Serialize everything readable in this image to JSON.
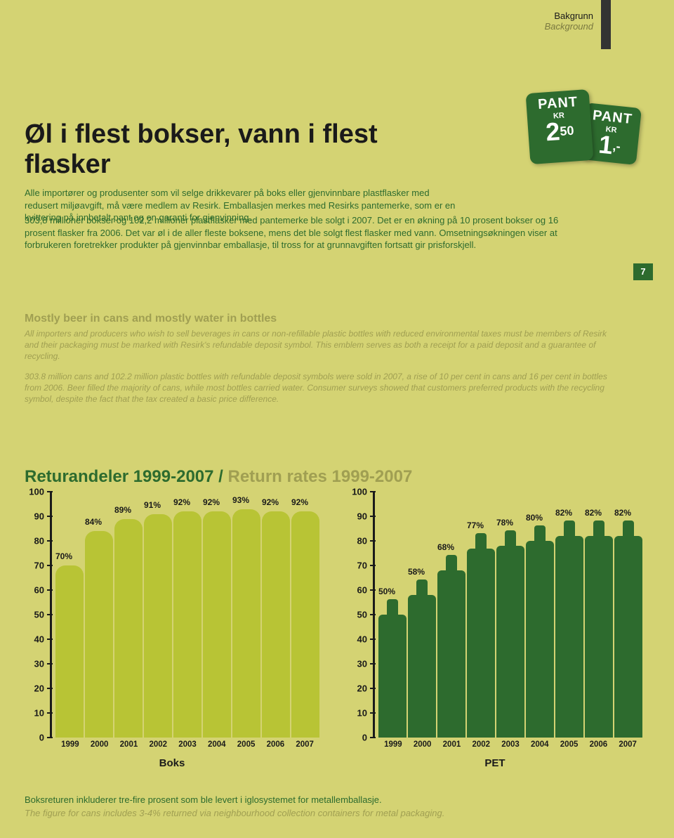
{
  "header": {
    "no": "Bakgrunn",
    "en": "Background"
  },
  "badges": {
    "big": {
      "pant": "PANT",
      "kr": "KR",
      "whole": "2",
      "dec": "50"
    },
    "small": {
      "pant": "PANT",
      "kr": "KR",
      "whole": "1",
      "dec": ",-"
    }
  },
  "title": "Øl i flest bokser, vann i flest flasker",
  "lead_no": "Alle importører og produsenter som vil selge drikkevarer på boks eller gjenvinnbare plastflasker med redusert miljøavgift, må være medlem av Resirk. Emballasjen merkes med Resirks pantemerke, som er en kvittering på innbetalt pant og en garanti for gjenvinning.",
  "body_no": "303,8 millioner bokser og 102,2 millioner plastflasker med pantemerke ble solgt i 2007. Det er en økning på 10 prosent bokser og 16 prosent flasker fra 2006. Det var øl i de aller fleste boksene, mens det ble solgt flest flasker med vann. Omsetningsøkningen viser at forbrukeren foretrekker produkter på gjenvinnbar emballasje, til tross for at grunnavgiften fortsatt gir prisforskjell.",
  "page": "7",
  "en_title": "Mostly beer in cans and mostly water in bottles",
  "en_p1": "All importers and producers who wish to sell beverages in cans or non-refillable plastic bottles with reduced environmental taxes must be members of Resirk and their packaging must be marked with Resirk's refundable deposit symbol. This emblem serves as both a receipt for a paid deposit and a guarantee of recycling.",
  "en_p2": "303.8 million cans and 102.2 million plastic bottles with refundable deposit symbols were sold in 2007, a rise of 10 per cent in cans and 16 per cent in bottles from 2006. Beer filled the majority of cans, while most bottles carried water. Consumer surveys showed that customers preferred products with the recycling symbol, despite the fact that the tax created a basic price difference.",
  "chart_title_no": "Returandeler 1999-2007",
  "chart_title_sep": " / ",
  "chart_title_en": "Return rates 1999-2007",
  "axis": {
    "ymin": 0,
    "ymax": 100,
    "step": 10,
    "ticks": [
      "100",
      "90",
      "80",
      "70",
      "60",
      "50",
      "40",
      "30",
      "20",
      "10",
      "0"
    ]
  },
  "charts": {
    "boks": {
      "name": "Boks",
      "bar_color": "#b8c435",
      "shape": "can",
      "years": [
        "1999",
        "2000",
        "2001",
        "2002",
        "2003",
        "2004",
        "2005",
        "2006",
        "2007"
      ],
      "values": [
        70,
        84,
        89,
        91,
        92,
        92,
        93,
        92,
        92
      ],
      "labels": [
        "70%",
        "84%",
        "89%",
        "91%",
        "92%",
        "92%",
        "93%",
        "92%",
        "92%"
      ]
    },
    "pet": {
      "name": "PET",
      "bar_color": "#2d6b2e",
      "shape": "bottle",
      "years": [
        "1999",
        "2000",
        "2001",
        "2002",
        "2003",
        "2004",
        "2005",
        "2006",
        "2007"
      ],
      "values": [
        50,
        58,
        68,
        77,
        78,
        80,
        82,
        82,
        82
      ],
      "labels": [
        "50%",
        "58%",
        "68%",
        "77%",
        "78%",
        "80%",
        "82%",
        "82%",
        "82%"
      ]
    }
  },
  "footnote_no": "Boksreturen inkluderer tre-fire prosent som ble levert i iglosystemet for metallemballasje.",
  "footnote_en": "The figure for cans includes 3-4% returned via neighbourhood collection containers for metal packaging.",
  "colors": {
    "page_bg": "#d4d373",
    "dark_green": "#2d6b2e",
    "lime": "#b8c435",
    "olive_text": "#a09f52",
    "ink": "#1a1a1a"
  }
}
